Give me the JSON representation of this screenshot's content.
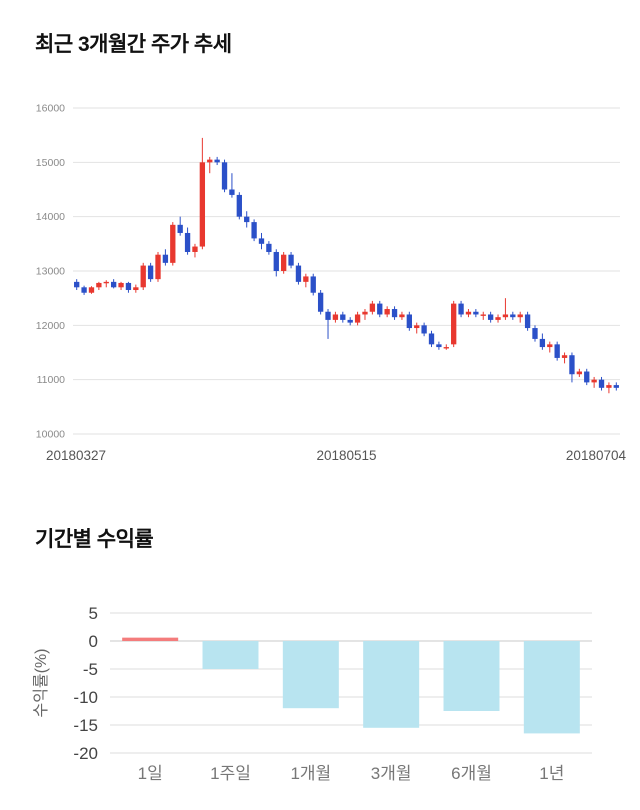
{
  "price_section": {
    "title": "최근 3개월간 주가 추세"
  },
  "returns_section": {
    "title": "기간별 수익률"
  },
  "chart_data": [
    {
      "type": "candlestick",
      "title": "최근 3개월간 주가 추세",
      "ylim": [
        10000,
        16000
      ],
      "yticks": [
        16000,
        15000,
        14000,
        13000,
        12000,
        11000,
        10000
      ],
      "xticks": [
        "20180327",
        "20180515",
        "20180704"
      ],
      "grid": true,
      "up_color": "#e8382f",
      "down_color": "#2b50c8",
      "grid_color": "#e2e2e2",
      "candles": [
        [
          12800,
          12850,
          12650,
          12700
        ],
        [
          12700,
          12730,
          12560,
          12600
        ],
        [
          12600,
          12720,
          12580,
          12700
        ],
        [
          12700,
          12800,
          12650,
          12780
        ],
        [
          12780,
          12830,
          12700,
          12800
        ],
        [
          12800,
          12850,
          12680,
          12700
        ],
        [
          12700,
          12800,
          12650,
          12780
        ],
        [
          12780,
          12800,
          12600,
          12650
        ],
        [
          12650,
          12750,
          12600,
          12700
        ],
        [
          12700,
          13150,
          12650,
          13100
        ],
        [
          13100,
          13150,
          12800,
          12850
        ],
        [
          12850,
          13350,
          12800,
          13300
        ],
        [
          13300,
          13400,
          13100,
          13150
        ],
        [
          13150,
          13900,
          13100,
          13850
        ],
        [
          13850,
          14000,
          13650,
          13700
        ],
        [
          13700,
          13800,
          13300,
          13350
        ],
        [
          13350,
          13500,
          13250,
          13450
        ],
        [
          13450,
          15450,
          13400,
          15000
        ],
        [
          15000,
          15100,
          14800,
          15050
        ],
        [
          15050,
          15100,
          14950,
          15000
        ],
        [
          15000,
          15050,
          14450,
          14500
        ],
        [
          14500,
          14800,
          14350,
          14400
        ],
        [
          14400,
          14450,
          13950,
          14000
        ],
        [
          14000,
          14100,
          13800,
          13900
        ],
        [
          13900,
          13950,
          13550,
          13600
        ],
        [
          13600,
          13700,
          13400,
          13500
        ],
        [
          13500,
          13550,
          13300,
          13350
        ],
        [
          13350,
          13400,
          12900,
          13000
        ],
        [
          13000,
          13350,
          12950,
          13300
        ],
        [
          13300,
          13350,
          13050,
          13100
        ],
        [
          13100,
          13150,
          12750,
          12800
        ],
        [
          12800,
          12950,
          12700,
          12900
        ],
        [
          12900,
          12950,
          12550,
          12600
        ],
        [
          12600,
          12650,
          12200,
          12250
        ],
        [
          12250,
          12300,
          11750,
          12100
        ],
        [
          12100,
          12250,
          12050,
          12200
        ],
        [
          12200,
          12250,
          12050,
          12100
        ],
        [
          12100,
          12150,
          12000,
          12050
        ],
        [
          12050,
          12250,
          12000,
          12200
        ],
        [
          12200,
          12300,
          12100,
          12250
        ],
        [
          12250,
          12450,
          12200,
          12400
        ],
        [
          12400,
          12450,
          12150,
          12200
        ],
        [
          12200,
          12350,
          12150,
          12300
        ],
        [
          12300,
          12350,
          12100,
          12150
        ],
        [
          12150,
          12250,
          12100,
          12200
        ],
        [
          12200,
          12250,
          11900,
          11950
        ],
        [
          11950,
          12050,
          11850,
          12000
        ],
        [
          12000,
          12050,
          11800,
          11850
        ],
        [
          11850,
          11900,
          11600,
          11650
        ],
        [
          11650,
          11700,
          11550,
          11600
        ],
        [
          11600,
          11650,
          11550,
          11600
        ],
        [
          11650,
          12450,
          11600,
          12400
        ],
        [
          12400,
          12450,
          12150,
          12200
        ],
        [
          12200,
          12300,
          12150,
          12250
        ],
        [
          12250,
          12300,
          12150,
          12200
        ],
        [
          12200,
          12250,
          12100,
          12200
        ],
        [
          12200,
          12250,
          12050,
          12100
        ],
        [
          12100,
          12200,
          12050,
          12150
        ],
        [
          12150,
          12500,
          12100,
          12200
        ],
        [
          12200,
          12250,
          12100,
          12150
        ],
        [
          12150,
          12250,
          12050,
          12200
        ],
        [
          12200,
          12250,
          11900,
          11950
        ],
        [
          11950,
          12000,
          11700,
          11750
        ],
        [
          11750,
          11850,
          11550,
          11600
        ],
        [
          11600,
          11700,
          11500,
          11650
        ],
        [
          11650,
          11700,
          11350,
          11400
        ],
        [
          11400,
          11500,
          11300,
          11450
        ],
        [
          11450,
          11500,
          10950,
          11100
        ],
        [
          11100,
          11200,
          11050,
          11150
        ],
        [
          11150,
          11200,
          10900,
          10950
        ],
        [
          10950,
          11050,
          10850,
          11000
        ],
        [
          11000,
          11050,
          10800,
          10850
        ],
        [
          10850,
          10950,
          10750,
          10900
        ],
        [
          10900,
          10950,
          10800,
          10850
        ]
      ]
    },
    {
      "type": "bar",
      "title": "기간별 수익률",
      "categories": [
        "1일",
        "1주일",
        "1개월",
        "3개월",
        "6개월",
        "1년"
      ],
      "values": [
        0.6,
        -5.0,
        -12.0,
        -15.5,
        -12.5,
        -16.5
      ],
      "ylabel": "수익률(%)",
      "ylim": [
        -20,
        5
      ],
      "yticks": [
        5,
        0,
        -5,
        -10,
        -15,
        -20
      ],
      "grid": true,
      "legend": false,
      "positive_color": "#f47c7c",
      "negative_color": "#b8e4f0",
      "grid_color": "#dedede"
    }
  ]
}
